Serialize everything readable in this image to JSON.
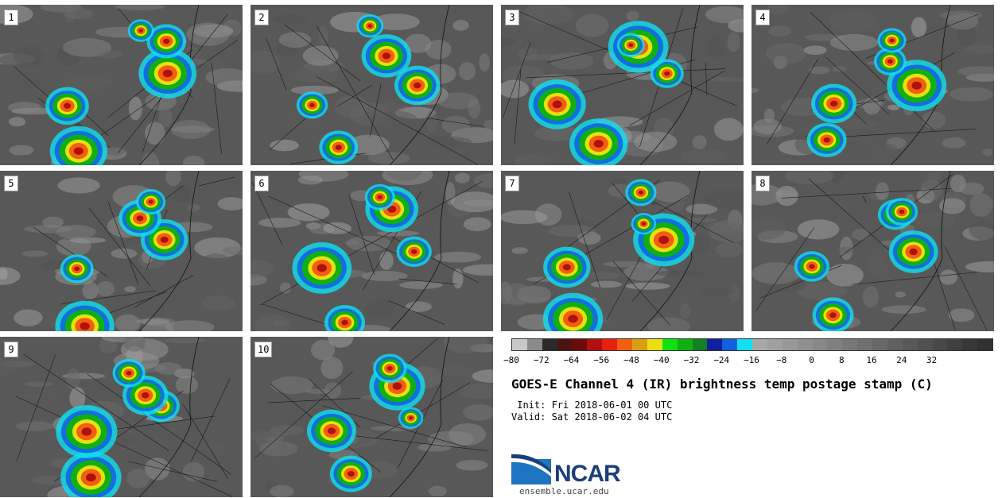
{
  "panels": [
    {
      "label": "1"
    },
    {
      "label": "2"
    },
    {
      "label": "3"
    },
    {
      "label": "4"
    },
    {
      "label": "5"
    },
    {
      "label": "6"
    },
    {
      "label": "7"
    },
    {
      "label": "8"
    },
    {
      "label": "9"
    },
    {
      "label": "10"
    }
  ],
  "colorbar": {
    "colors": [
      "#c8c8c8",
      "#8a8a8a",
      "#2a2a2a",
      "#4a1414",
      "#6e0a0a",
      "#b01010",
      "#e82010",
      "#f06010",
      "#d8a010",
      "#e8e010",
      "#10e010",
      "#10b010",
      "#108020",
      "#1020a0",
      "#1060e0",
      "#10e0f0",
      "#a8a8a8",
      "#a0a0a0",
      "#989898",
      "#909090",
      "#888888",
      "#808080",
      "#787878",
      "#707070",
      "#686868",
      "#606060",
      "#585858",
      "#505050",
      "#484848",
      "#404040",
      "#383838",
      "#303030"
    ],
    "ticks": [
      "−80",
      "−72",
      "−64",
      "−56",
      "−48",
      "−40",
      "−32",
      "−24",
      "−16",
      "−8",
      "0",
      "8",
      "16",
      "24",
      "32"
    ]
  },
  "title": "GOES-E Channel 4 (IR) brightness temp postage stamp (C)",
  "init_line": " Init: Fri 2018-06-01 00 UTC",
  "valid_line": "Valid: Sat 2018-06-02 04 UTC",
  "logo_text": "NCAR",
  "website": "ensemble.ucar.edu"
}
